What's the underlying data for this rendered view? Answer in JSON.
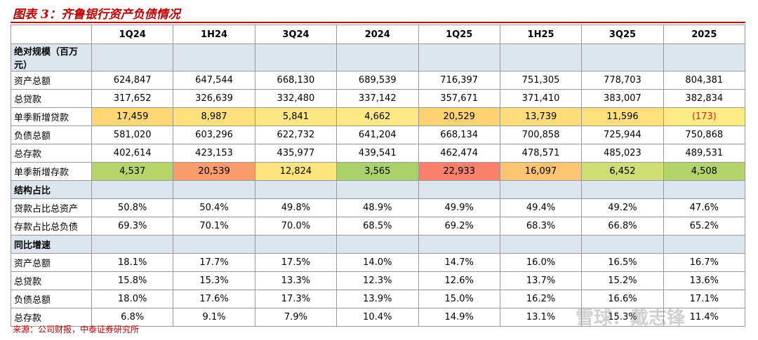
{
  "title": "图表 3：齐鲁银行资产负债情况",
  "table": {
    "columns": [
      "1Q24",
      "1H24",
      "3Q24",
      "2024",
      "1Q25",
      "1H25",
      "3Q25",
      "2025"
    ],
    "rows": [
      {
        "label": "绝对规模（百万元）"
      },
      {
        "label": "资产总额",
        "values": [
          "624,847",
          "647,544",
          "668,130",
          "689,539",
          "716,397",
          "751,305",
          "778,703",
          "804,381"
        ]
      },
      {
        "label": "总贷款",
        "values": [
          "317,652",
          "326,639",
          "332,480",
          "337,142",
          "357,671",
          "371,410",
          "383,007",
          "382,834"
        ]
      },
      {
        "label": "单季新增贷款",
        "values": [
          "17,459",
          "8,987",
          "5,841",
          "4,662",
          "20,529",
          "13,739",
          "11,596",
          "(173)"
        ],
        "colors": [
          "#fdd774",
          "#fee07d",
          "#fee682",
          "#fee984",
          "#fdd372",
          "#fedc79",
          "#fedf7c",
          "#ffeb85"
        ]
      },
      {
        "label": "负债总额",
        "values": [
          "581,020",
          "603,296",
          "622,732",
          "641,204",
          "668,134",
          "700,858",
          "725,944",
          "750,868"
        ]
      },
      {
        "label": "总存款",
        "values": [
          "402,614",
          "423,153",
          "435,977",
          "439,541",
          "462,474",
          "478,571",
          "485,023",
          "489,531"
        ]
      },
      {
        "label": "单季新增存款",
        "values": [
          "4,537",
          "20,539",
          "12,824",
          "3,565",
          "22,933",
          "16,097",
          "6,452",
          "4,508"
        ],
        "colors": [
          "#b5d56b",
          "#f99b6b",
          "#fde47f",
          "#a9d06a",
          "#f8816b",
          "#fcc370",
          "#cfdd74",
          "#b3d46b"
        ]
      },
      {
        "label": "结构占比"
      },
      {
        "label": "贷款占比总资产",
        "values": [
          "50.8%",
          "50.4%",
          "49.8%",
          "48.9%",
          "49.9%",
          "49.4%",
          "49.2%",
          "47.6%"
        ]
      },
      {
        "label": "存款占比总负债",
        "values": [
          "69.3%",
          "70.1%",
          "70.0%",
          "68.5%",
          "69.2%",
          "68.3%",
          "66.8%",
          "65.2%"
        ]
      },
      {
        "label": "同比增速"
      },
      {
        "label": "资产总额",
        "values": [
          "18.1%",
          "17.7%",
          "17.5%",
          "14.0%",
          "14.7%",
          "16.0%",
          "16.5%",
          "16.7%"
        ]
      },
      {
        "label": "总贷款",
        "values": [
          "15.8%",
          "15.3%",
          "13.3%",
          "12.3%",
          "12.6%",
          "13.7%",
          "15.2%",
          "13.6%"
        ]
      },
      {
        "label": "负债总额",
        "values": [
          "18.0%",
          "17.6%",
          "17.3%",
          "13.9%",
          "15.0%",
          "16.2%",
          "16.6%",
          "17.1%"
        ]
      },
      {
        "label": "总存款",
        "values": [
          "6.8%",
          "9.1%",
          "7.9%",
          "10.4%",
          "14.9%",
          "13.1%",
          "15.3%",
          "11.4%"
        ]
      }
    ]
  },
  "negative_color": "#e0201c",
  "source": "来源：公司财报，中泰证券研究所",
  "watermark": "雪球：戴志锋"
}
